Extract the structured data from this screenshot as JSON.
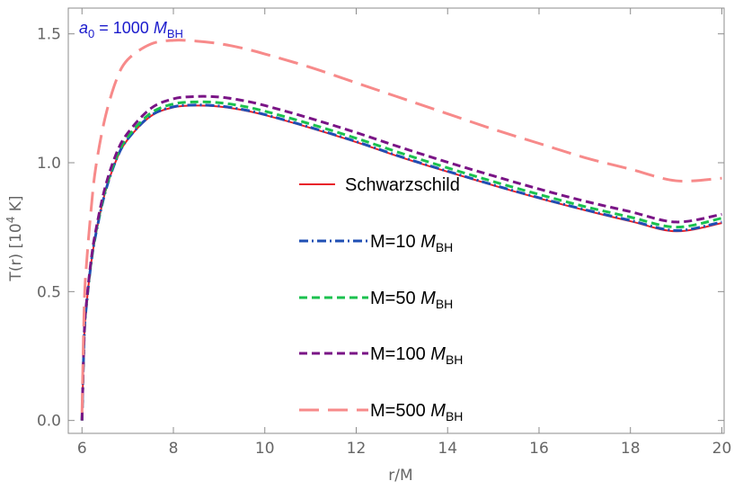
{
  "chart_data": {
    "type": "line",
    "xlabel": "r/M",
    "ylabel": {
      "base": "T(r) [10",
      "sup": "4",
      "unit": " K]"
    },
    "xlim": [
      5.7,
      20.05
    ],
    "ylim": [
      -0.05,
      1.6
    ],
    "x_ticks": [
      6,
      8,
      10,
      12,
      14,
      16,
      18,
      20
    ],
    "y_ticks": [
      0.0,
      0.5,
      1.0,
      1.5
    ],
    "x_tick_labels": [
      "6",
      "8",
      "10",
      "12",
      "14",
      "16",
      "18",
      "20"
    ],
    "y_tick_labels": [
      "0.0",
      "0.5",
      "1.0",
      "1.5"
    ],
    "annotation": {
      "var": "a",
      "sub": "0",
      "text": " = 1000 ",
      "mvar": "M",
      "msub": "BH"
    },
    "legend_position": "center-right",
    "x": [
      6.0,
      6.05,
      6.1,
      6.2,
      6.3,
      6.5,
      6.75,
      7.0,
      7.5,
      8.0,
      8.5,
      9.0,
      9.5,
      10.0,
      11.0,
      12.0,
      13.0,
      14.0,
      15.0,
      16.0,
      17.0,
      18.0,
      19.0,
      20.0
    ],
    "series": [
      {
        "name": "Schwarzschild",
        "legend_main": "Schwarzschild",
        "legend_sub": "",
        "color": "#e8202a",
        "dash": "",
        "width": 2,
        "values": [
          0.0,
          0.33,
          0.45,
          0.61,
          0.72,
          0.88,
          1.01,
          1.09,
          1.18,
          1.215,
          1.222,
          1.218,
          1.205,
          1.185,
          1.135,
          1.08,
          1.02,
          0.965,
          0.912,
          0.862,
          0.816,
          0.773,
          0.734,
          0.766
        ]
      },
      {
        "name": "M=10 MBH",
        "legend_main": "M=10 ",
        "legend_sub": "BH",
        "color": "#1f4fb4",
        "dash": "10,4,2,4",
        "width": 3,
        "values": [
          0.0,
          0.33,
          0.45,
          0.61,
          0.72,
          0.88,
          1.012,
          1.092,
          1.182,
          1.217,
          1.224,
          1.22,
          1.207,
          1.187,
          1.137,
          1.082,
          1.022,
          0.967,
          0.914,
          0.864,
          0.818,
          0.776,
          0.737,
          0.77
        ]
      },
      {
        "name": "M=50 MBH",
        "legend_main": "M=50 ",
        "legend_sub": "BH",
        "color": "#1ac14e",
        "dash": "9,5",
        "width": 3,
        "values": [
          0.0,
          0.335,
          0.455,
          0.615,
          0.727,
          0.888,
          1.02,
          1.1,
          1.192,
          1.228,
          1.236,
          1.233,
          1.22,
          1.2,
          1.15,
          1.095,
          1.036,
          0.98,
          0.927,
          0.877,
          0.83,
          0.789,
          0.75,
          0.785
        ]
      },
      {
        "name": "M=100 MBH",
        "legend_main": "M=100 ",
        "legend_sub": "BH",
        "color": "#7a1486",
        "dash": "9,5",
        "width": 3,
        "values": [
          0.0,
          0.34,
          0.46,
          0.622,
          0.735,
          0.9,
          1.035,
          1.115,
          1.21,
          1.248,
          1.257,
          1.255,
          1.242,
          1.222,
          1.172,
          1.117,
          1.058,
          1.002,
          0.949,
          0.898,
          0.851,
          0.81,
          0.77,
          0.8
        ]
      },
      {
        "name": "M=500 MBH",
        "legend_main": "M=500 ",
        "legend_sub": "BH",
        "color": "#f78a8a",
        "dash": "22,10",
        "width": 3,
        "values": [
          0.03,
          0.45,
          0.61,
          0.82,
          0.98,
          1.17,
          1.32,
          1.4,
          1.46,
          1.475,
          1.472,
          1.462,
          1.445,
          1.422,
          1.37,
          1.31,
          1.25,
          1.19,
          1.13,
          1.075,
          1.02,
          0.975,
          0.93,
          0.94
        ]
      }
    ]
  }
}
